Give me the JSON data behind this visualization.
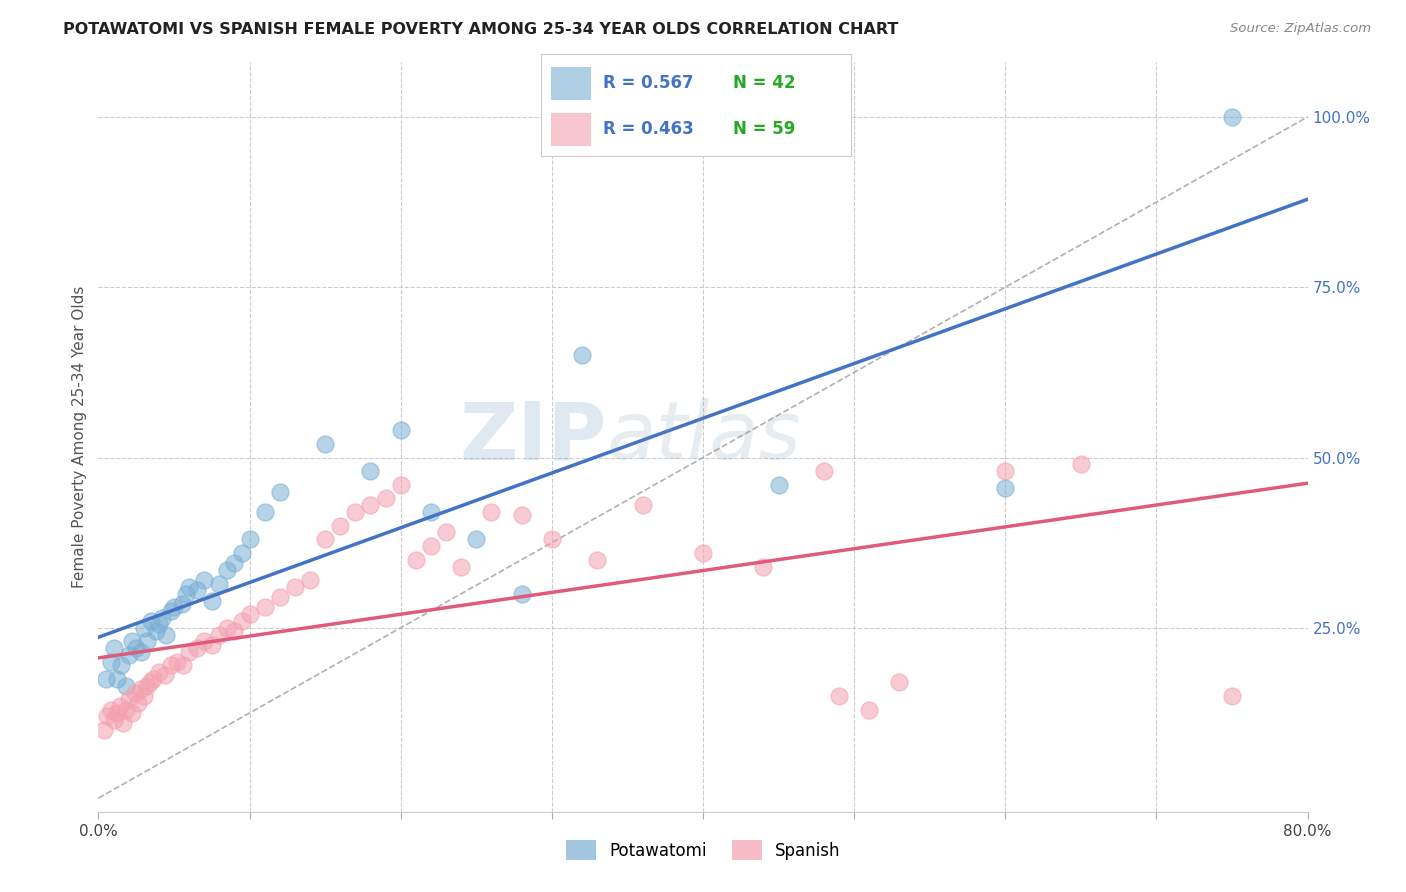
{
  "title": "POTAWATOMI VS SPANISH FEMALE POVERTY AMONG 25-34 YEAR OLDS CORRELATION CHART",
  "source": "Source: ZipAtlas.com",
  "ylabel": "Female Poverty Among 25-34 Year Olds",
  "xlim": [
    0.0,
    0.8
  ],
  "ylim": [
    -0.02,
    1.08
  ],
  "grid_color": "#cccccc",
  "bg_color": "#ffffff",
  "watermark_zip": "ZIP",
  "watermark_atlas": "atlas",
  "blue_color": "#7bafd4",
  "pink_color": "#f4a0b0",
  "blue_line_color": "#4472c4",
  "pink_line_color": "#e05a7a",
  "dashed_line_color": "#b0b0b0",
  "right_tick_color": "#4472c4",
  "potawatomi_x": [
    0.005,
    0.008,
    0.01,
    0.012,
    0.015,
    0.018,
    0.02,
    0.022,
    0.025,
    0.028,
    0.03,
    0.032,
    0.035,
    0.038,
    0.04,
    0.042,
    0.045,
    0.048,
    0.05,
    0.055,
    0.058,
    0.06,
    0.065,
    0.07,
    0.075,
    0.08,
    0.085,
    0.09,
    0.095,
    0.1,
    0.11,
    0.12,
    0.15,
    0.18,
    0.2,
    0.22,
    0.25,
    0.28,
    0.32,
    0.45,
    0.6,
    0.75
  ],
  "potawatomi_y": [
    0.175,
    0.2,
    0.22,
    0.175,
    0.195,
    0.165,
    0.21,
    0.23,
    0.22,
    0.215,
    0.25,
    0.23,
    0.26,
    0.245,
    0.255,
    0.265,
    0.24,
    0.275,
    0.28,
    0.285,
    0.3,
    0.31,
    0.305,
    0.32,
    0.29,
    0.315,
    0.335,
    0.345,
    0.36,
    0.38,
    0.42,
    0.45,
    0.52,
    0.48,
    0.54,
    0.42,
    0.38,
    0.3,
    0.65,
    0.46,
    0.455,
    1.0
  ],
  "spanish_x": [
    0.004,
    0.006,
    0.008,
    0.01,
    0.012,
    0.014,
    0.016,
    0.018,
    0.02,
    0.022,
    0.024,
    0.026,
    0.028,
    0.03,
    0.032,
    0.034,
    0.036,
    0.04,
    0.044,
    0.048,
    0.052,
    0.056,
    0.06,
    0.065,
    0.07,
    0.075,
    0.08,
    0.085,
    0.09,
    0.095,
    0.1,
    0.11,
    0.12,
    0.13,
    0.14,
    0.15,
    0.16,
    0.17,
    0.18,
    0.19,
    0.2,
    0.21,
    0.22,
    0.23,
    0.24,
    0.26,
    0.28,
    0.3,
    0.33,
    0.36,
    0.4,
    0.44,
    0.48,
    0.49,
    0.51,
    0.53,
    0.6,
    0.65,
    0.75
  ],
  "spanish_y": [
    0.1,
    0.12,
    0.13,
    0.115,
    0.125,
    0.135,
    0.11,
    0.13,
    0.145,
    0.125,
    0.155,
    0.14,
    0.16,
    0.15,
    0.165,
    0.17,
    0.175,
    0.185,
    0.18,
    0.195,
    0.2,
    0.195,
    0.215,
    0.22,
    0.23,
    0.225,
    0.24,
    0.25,
    0.245,
    0.26,
    0.27,
    0.28,
    0.295,
    0.31,
    0.32,
    0.38,
    0.4,
    0.42,
    0.43,
    0.44,
    0.46,
    0.35,
    0.37,
    0.39,
    0.34,
    0.42,
    0.415,
    0.38,
    0.35,
    0.43,
    0.36,
    0.34,
    0.48,
    0.15,
    0.13,
    0.17,
    0.48,
    0.49,
    0.15
  ]
}
